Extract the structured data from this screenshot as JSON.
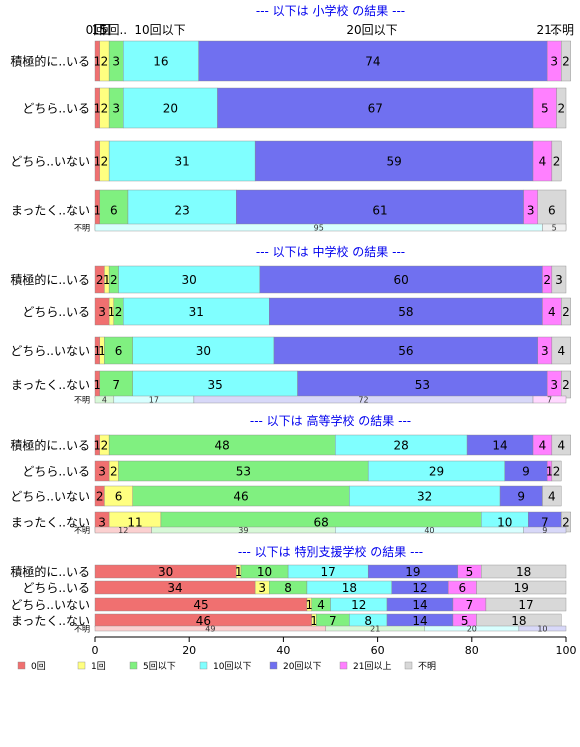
{
  "chart_data": {
    "type": "bar",
    "orientation": "horizontal-stacked-percent",
    "xlim": [
      0,
      100
    ],
    "x_ticks": [
      0,
      20,
      40,
      60,
      80,
      100
    ],
    "legend_position": "bottom-left",
    "legend": [
      {
        "name": "0回",
        "color": "#f07070"
      },
      {
        "name": "1回",
        "color": "#ffff80"
      },
      {
        "name": "5回以下",
        "color": "#80f080"
      },
      {
        "name": "10回以下",
        "color": "#80ffff"
      },
      {
        "name": "20回以下",
        "color": "#7070f0"
      },
      {
        "name": "21回以上",
        "color": "#ff80ff"
      },
      {
        "name": "不明",
        "color": "#d8d8d8"
      }
    ],
    "top_header_labels": [
      "0回",
      "1回",
      "5回..",
      "10回以下",
      "20回以下",
      "21..",
      "不明"
    ],
    "panels": [
      {
        "title": "--- 以下は 小学校 の結果 ---",
        "categories": [
          "積極的に..いる",
          "どちら..いる",
          "どちら..いない",
          "まったく..ない"
        ],
        "rows": [
          [
            1,
            2,
            3,
            16,
            74,
            3,
            2
          ],
          [
            1,
            2,
            3,
            20,
            67,
            5,
            2
          ],
          [
            1,
            2,
            0,
            31,
            59,
            4,
            2
          ],
          [
            1,
            0,
            6,
            23,
            61,
            3,
            6
          ]
        ],
        "unknown_label": "不明",
        "unknown_row": [
          0,
          0,
          0,
          95,
          0,
          0,
          5
        ]
      },
      {
        "title": "--- 以下は 中学校 の結果 ---",
        "categories": [
          "積極的に..いる",
          "どちら..いる",
          "どちら..いない",
          "まったく..ない"
        ],
        "rows": [
          [
            2,
            1,
            2,
            30,
            60,
            2,
            3
          ],
          [
            3,
            1,
            2,
            31,
            58,
            4,
            2
          ],
          [
            1,
            1,
            6,
            30,
            56,
            3,
            4
          ],
          [
            1,
            0,
            7,
            35,
            53,
            3,
            2
          ]
        ],
        "unknown_label": "不明",
        "unknown_row": [
          0,
          0,
          4,
          17,
          72,
          7,
          0
        ]
      },
      {
        "title": "--- 以下は 高等学校 の結果 ---",
        "categories": [
          "積極的に..いる",
          "どちら..いる",
          "どちら..いない",
          "まったく..ない"
        ],
        "rows": [
          [
            1,
            2,
            48,
            28,
            14,
            4,
            4
          ],
          [
            3,
            2,
            53,
            29,
            9,
            1,
            2
          ],
          [
            2,
            6,
            46,
            32,
            9,
            0,
            4
          ],
          [
            3,
            11,
            68,
            10,
            7,
            0,
            2
          ]
        ],
        "unknown_label": "不明",
        "unknown_row": [
          12,
          0,
          39,
          40,
          9,
          0,
          0
        ]
      },
      {
        "title": "--- 以下は 特別支援学校 の結果 ---",
        "categories": [
          "積極的に..いる",
          "どちら..いる",
          "どちら..いない",
          "まったく..ない"
        ],
        "rows": [
          [
            30,
            1,
            10,
            17,
            19,
            5,
            18
          ],
          [
            34,
            3,
            8,
            18,
            12,
            6,
            19
          ],
          [
            45,
            1,
            4,
            12,
            14,
            7,
            17
          ],
          [
            46,
            1,
            7,
            8,
            14,
            5,
            18
          ]
        ],
        "unknown_label": "不明",
        "unknown_row": [
          49,
          0,
          21,
          20,
          10,
          0,
          0
        ]
      }
    ]
  }
}
